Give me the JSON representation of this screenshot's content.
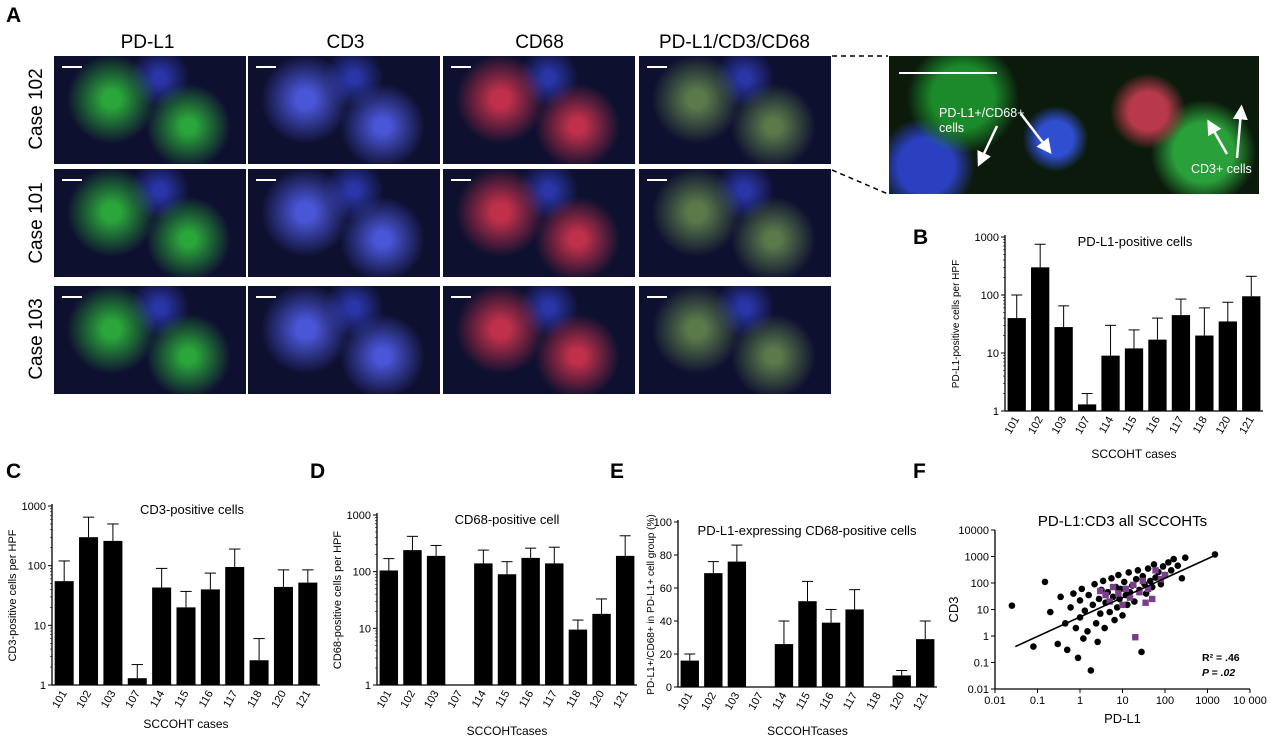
{
  "panel_a": {
    "letter": "A",
    "columns": [
      "PD-L1",
      "CD3",
      "CD68",
      "PD-L1/CD3/CD68"
    ],
    "rows": [
      "Case 102",
      "Case 101",
      "Case 103"
    ],
    "zoom_labels": {
      "double": "PD-L1+/CD68+ cells",
      "cd3": "CD3+ cells"
    },
    "colors": {
      "pdl1": "#2aa63a",
      "cd3": "#4a56d8",
      "cd68": "#c0304a",
      "merge": "#5a7a4a"
    }
  },
  "panel_letters": {
    "b": "B",
    "c": "C",
    "d": "D",
    "e": "E",
    "f": "F"
  },
  "chart_data": [
    {
      "id": "B",
      "type": "bar",
      "title": "PD-L1-positive cells",
      "xlabel": "SCCOHT cases",
      "ylabel": "PD-L1-positive cells per HPF",
      "yscale": "log",
      "ylim": [
        1,
        1000
      ],
      "yticks": [
        "1",
        "10",
        "100",
        "1000"
      ],
      "categories": [
        "101",
        "102",
        "103",
        "107",
        "114",
        "115",
        "116",
        "117",
        "118",
        "120",
        "121"
      ],
      "values": [
        40,
        300,
        28,
        1.3,
        9,
        12,
        17,
        45,
        20,
        35,
        95
      ],
      "errors": [
        100,
        750,
        65,
        2.0,
        30,
        25,
        40,
        85,
        60,
        75,
        210
      ]
    },
    {
      "id": "C",
      "type": "bar",
      "title": "CD3-positive cells",
      "xlabel": "SCCOHT cases",
      "ylabel": "CD3-positive cells per HPF",
      "yscale": "log",
      "ylim": [
        1,
        1000
      ],
      "yticks": [
        "1",
        "10",
        "100",
        "1000"
      ],
      "categories": [
        "101",
        "102",
        "103",
        "107",
        "114",
        "115",
        "116",
        "117",
        "118",
        "120",
        "121"
      ],
      "values": [
        55,
        300,
        260,
        1.3,
        43,
        20,
        40,
        95,
        2.6,
        44,
        52
      ],
      "errors": [
        120,
        650,
        500,
        2.2,
        90,
        37,
        75,
        190,
        6.0,
        85,
        85
      ]
    },
    {
      "id": "D",
      "type": "bar",
      "title": "CD68-positive cell",
      "xlabel": "SCCOHTcases",
      "ylabel": "CD68-positive cells per HPF",
      "yscale": "log",
      "ylim": [
        1,
        1000
      ],
      "yticks": [
        "1",
        "10",
        "100",
        "1000"
      ],
      "categories": [
        "101",
        "102",
        "103",
        "107",
        "114",
        "115",
        "116",
        "117",
        "118",
        "120",
        "121"
      ],
      "values": [
        105,
        240,
        190,
        null,
        140,
        90,
        175,
        140,
        9.5,
        18,
        190
      ],
      "errors": [
        170,
        420,
        290,
        null,
        240,
        150,
        260,
        270,
        14,
        33,
        430
      ]
    },
    {
      "id": "E",
      "type": "bar",
      "title": "PD-L1-expressing CD68-positive cells",
      "xlabel": "SCCOHTcases",
      "ylabel": "PD-L1+/CD68+ in PD-L1+ cell group (%)",
      "yscale": "linear",
      "ylim": [
        0,
        100
      ],
      "yticks": [
        "0",
        "20",
        "40",
        "60",
        "80",
        "100"
      ],
      "categories": [
        "101",
        "102",
        "103",
        "107",
        "114",
        "115",
        "116",
        "117",
        "118",
        "120",
        "121"
      ],
      "values": [
        16,
        69,
        76,
        null,
        26,
        52,
        39,
        47,
        null,
        7,
        29
      ],
      "errors": [
        20,
        76,
        86,
        null,
        40,
        64,
        47,
        59,
        null,
        10,
        40
      ]
    },
    {
      "id": "F",
      "type": "scatter",
      "title": "PD-L1:CD3 all SCCOHTs",
      "xlabel": "PD-L1",
      "ylabel": "CD3",
      "xscale": "log",
      "yscale": "log",
      "xticks": [
        "0.01",
        "0.1",
        "1",
        "10",
        "100",
        "1000",
        "10 000"
      ],
      "yticks": [
        "0.01",
        "0.1",
        "1",
        "10",
        "100",
        "1000",
        "10000"
      ],
      "xlim": [
        0.01,
        10000
      ],
      "ylim": [
        0.01,
        10000
      ],
      "annotations": {
        "r2": "R² = .46",
        "p": "P = .02"
      },
      "fit_line": {
        "x": [
          0.03,
          1500
        ],
        "y": [
          0.4,
          1100
        ]
      },
      "series": [
        {
          "color": "#000000",
          "points": [
            [
              0.025,
              14
            ],
            [
              0.08,
              0.4
            ],
            [
              0.15,
              110
            ],
            [
              0.2,
              8
            ],
            [
              0.3,
              0.5
            ],
            [
              0.35,
              30
            ],
            [
              0.45,
              3
            ],
            [
              0.5,
              0.3
            ],
            [
              0.6,
              12
            ],
            [
              0.7,
              40
            ],
            [
              0.8,
              2
            ],
            [
              0.9,
              0.15
            ],
            [
              1,
              5
            ],
            [
              1,
              22
            ],
            [
              1.1,
              60
            ],
            [
              1.2,
              0.8
            ],
            [
              1.3,
              9
            ],
            [
              1.5,
              1.5
            ],
            [
              1.6,
              35
            ],
            [
              1.8,
              0.05
            ],
            [
              2,
              15
            ],
            [
              2.2,
              90
            ],
            [
              2.4,
              3
            ],
            [
              2.6,
              0.6
            ],
            [
              2.8,
              25
            ],
            [
              3,
              7
            ],
            [
              3.2,
              55
            ],
            [
              3.5,
              120
            ],
            [
              3.8,
              2
            ],
            [
              4,
              18
            ],
            [
              4.5,
              45
            ],
            [
              5,
              8
            ],
            [
              5.5,
              150
            ],
            [
              6,
              30
            ],
            [
              6.5,
              4
            ],
            [
              7,
              70
            ],
            [
              7.5,
              12
            ],
            [
              8,
              200
            ],
            [
              8.5,
              25
            ],
            [
              9,
              60
            ],
            [
              10,
              6
            ],
            [
              11,
              110
            ],
            [
              12,
              35
            ],
            [
              13,
              15
            ],
            [
              14,
              250
            ],
            [
              15,
              45
            ],
            [
              17,
              80
            ],
            [
              19,
              20
            ],
            [
              21,
              140
            ],
            [
              23,
              300
            ],
            [
              25,
              55
            ],
            [
              28,
              0.25
            ],
            [
              30,
              180
            ],
            [
              33,
              90
            ],
            [
              36,
              40
            ],
            [
              40,
              350
            ],
            [
              45,
              120
            ],
            [
              50,
              70
            ],
            [
              55,
              500
            ],
            [
              60,
              160
            ],
            [
              70,
              260
            ],
            [
              80,
              90
            ],
            [
              90,
              420
            ],
            [
              100,
              200
            ],
            [
              120,
              600
            ],
            [
              140,
              300
            ],
            [
              160,
              800
            ],
            [
              200,
              450
            ],
            [
              250,
              150
            ],
            [
              300,
              900
            ],
            [
              1500,
              1200
            ]
          ]
        },
        {
          "color": "#7a3f8a",
          "points": [
            [
              3,
              50
            ],
            [
              4,
              35
            ],
            [
              5,
              20
            ],
            [
              6,
              70
            ],
            [
              8,
              40
            ],
            [
              10,
              15
            ],
            [
              12,
              60
            ],
            [
              15,
              28
            ],
            [
              18,
              85
            ],
            [
              20,
              0.9
            ],
            [
              25,
              45
            ],
            [
              30,
              120
            ],
            [
              35,
              18
            ],
            [
              40,
              60
            ],
            [
              50,
              25
            ],
            [
              60,
              300
            ],
            [
              80,
              140
            ],
            [
              100,
              200
            ]
          ]
        }
      ]
    }
  ]
}
